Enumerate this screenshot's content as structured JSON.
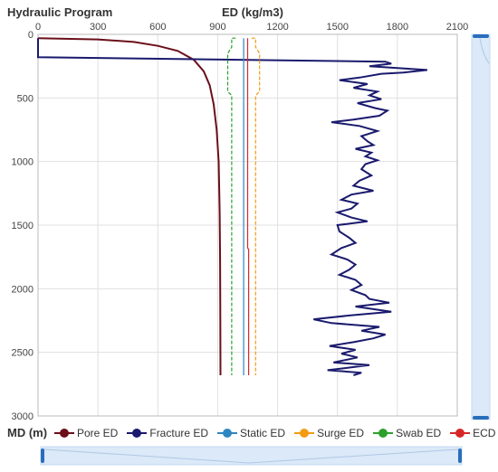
{
  "header": {
    "title": "Hydraulic Program",
    "x_axis_label": "ED (kg/m3)",
    "y_axis_label": "MD (m)"
  },
  "colors": {
    "pore": "#6b0f1a",
    "fracture": "#1a1a6e",
    "static": "#2e86c1",
    "surge": "#f39c12",
    "swab": "#2ca02c",
    "ecd": "#d62728",
    "grid": "#e0e0e0",
    "scroll_track": "#dbe9f8",
    "scroll_handle": "#2a6ebb"
  },
  "chart_data": {
    "type": "line",
    "title": "Hydraulic Program",
    "xlabel": "ED (kg/m3)",
    "ylabel": "MD (m)",
    "xlim": [
      0,
      2100
    ],
    "ylim": [
      0,
      3000
    ],
    "y_inverted": true,
    "x_axis_position": "top",
    "x_ticks": [
      "0",
      "300",
      "600",
      "900",
      "1200",
      "1500",
      "1800",
      "2100"
    ],
    "y_ticks": [
      "0",
      "500",
      "1000",
      "1500",
      "2000",
      "2500",
      "3000"
    ],
    "grid": true,
    "legend_position": "bottom",
    "series": [
      {
        "name": "Pore ED",
        "color": "#6b0f1a",
        "points": [
          [
            0,
            30
          ],
          [
            300,
            40
          ],
          [
            480,
            60
          ],
          [
            600,
            90
          ],
          [
            700,
            130
          ],
          [
            780,
            200
          ],
          [
            830,
            290
          ],
          [
            860,
            400
          ],
          [
            880,
            550
          ],
          [
            895,
            750
          ],
          [
            905,
            1000
          ],
          [
            910,
            1400
          ],
          [
            912,
            1800
          ],
          [
            913,
            2200
          ],
          [
            914,
            2680
          ]
        ]
      },
      {
        "name": "Fracture ED",
        "color": "#1a1a6e",
        "points": [
          [
            0,
            30
          ],
          [
            0,
            180
          ],
          [
            1740,
            215
          ],
          [
            1770,
            230
          ],
          [
            1660,
            250
          ],
          [
            1950,
            280
          ],
          [
            1830,
            300
          ],
          [
            1720,
            310
          ],
          [
            1610,
            340
          ],
          [
            1510,
            360
          ],
          [
            1650,
            390
          ],
          [
            1580,
            420
          ],
          [
            1700,
            450
          ],
          [
            1660,
            480
          ],
          [
            1720,
            510
          ],
          [
            1600,
            540
          ],
          [
            1690,
            580
          ],
          [
            1750,
            600
          ],
          [
            1710,
            640
          ],
          [
            1580,
            670
          ],
          [
            1470,
            690
          ],
          [
            1610,
            720
          ],
          [
            1700,
            760
          ],
          [
            1620,
            800
          ],
          [
            1650,
            840
          ],
          [
            1680,
            870
          ],
          [
            1590,
            900
          ],
          [
            1670,
            930
          ],
          [
            1640,
            960
          ],
          [
            1700,
            990
          ],
          [
            1640,
            1020
          ],
          [
            1620,
            1060
          ],
          [
            1670,
            1110
          ],
          [
            1610,
            1150
          ],
          [
            1580,
            1190
          ],
          [
            1680,
            1230
          ],
          [
            1570,
            1260
          ],
          [
            1520,
            1300
          ],
          [
            1600,
            1330
          ],
          [
            1570,
            1370
          ],
          [
            1500,
            1400
          ],
          [
            1570,
            1440
          ],
          [
            1650,
            1470
          ],
          [
            1500,
            1500
          ],
          [
            1510,
            1550
          ],
          [
            1560,
            1600
          ],
          [
            1590,
            1640
          ],
          [
            1520,
            1680
          ],
          [
            1470,
            1730
          ],
          [
            1550,
            1770
          ],
          [
            1590,
            1810
          ],
          [
            1560,
            1850
          ],
          [
            1510,
            1890
          ],
          [
            1590,
            1930
          ],
          [
            1620,
            1970
          ],
          [
            1570,
            2010
          ],
          [
            1640,
            2050
          ],
          [
            1660,
            2080
          ],
          [
            1760,
            2110
          ],
          [
            1590,
            2140
          ],
          [
            1770,
            2180
          ],
          [
            1560,
            2210
          ],
          [
            1380,
            2240
          ],
          [
            1470,
            2270
          ],
          [
            1710,
            2300
          ],
          [
            1620,
            2330
          ],
          [
            1740,
            2360
          ],
          [
            1680,
            2390
          ],
          [
            1580,
            2420
          ],
          [
            1460,
            2450
          ],
          [
            1590,
            2480
          ],
          [
            1520,
            2510
          ],
          [
            1600,
            2540
          ],
          [
            1480,
            2580
          ],
          [
            1660,
            2600
          ],
          [
            1560,
            2620
          ],
          [
            1450,
            2640
          ],
          [
            1620,
            2660
          ],
          [
            1580,
            2680
          ]
        ]
      },
      {
        "name": "Static ED",
        "color": "#2e86c1",
        "points": [
          [
            1030,
            30
          ],
          [
            1030,
            2680
          ]
        ]
      },
      {
        "name": "Surge ED",
        "color": "#f39c12",
        "points": [
          [
            1070,
            30
          ],
          [
            1090,
            30
          ],
          [
            1090,
            100
          ],
          [
            1110,
            150
          ],
          [
            1110,
            450
          ],
          [
            1090,
            480
          ],
          [
            1090,
            2680
          ]
        ]
      },
      {
        "name": "Swab ED",
        "color": "#2ca02c",
        "points": [
          [
            990,
            30
          ],
          [
            970,
            30
          ],
          [
            970,
            100
          ],
          [
            950,
            150
          ],
          [
            950,
            450
          ],
          [
            970,
            480
          ],
          [
            970,
            2680
          ]
        ]
      },
      {
        "name": "ECD",
        "color": "#d62728",
        "points": [
          [
            1050,
            30
          ],
          [
            1050,
            1680
          ],
          [
            1055,
            1690
          ],
          [
            1055,
            2680
          ]
        ]
      }
    ]
  },
  "legend": {
    "items": [
      {
        "label": "Pore ED",
        "color": "#6b0f1a"
      },
      {
        "label": "Fracture ED",
        "color": "#1a1a6e"
      },
      {
        "label": "Static ED",
        "color": "#2e86c1"
      },
      {
        "label": "Surge ED",
        "color": "#f39c12"
      },
      {
        "label": "Swab ED",
        "color": "#2ca02c"
      },
      {
        "label": "ECD",
        "color": "#d62728"
      }
    ]
  }
}
